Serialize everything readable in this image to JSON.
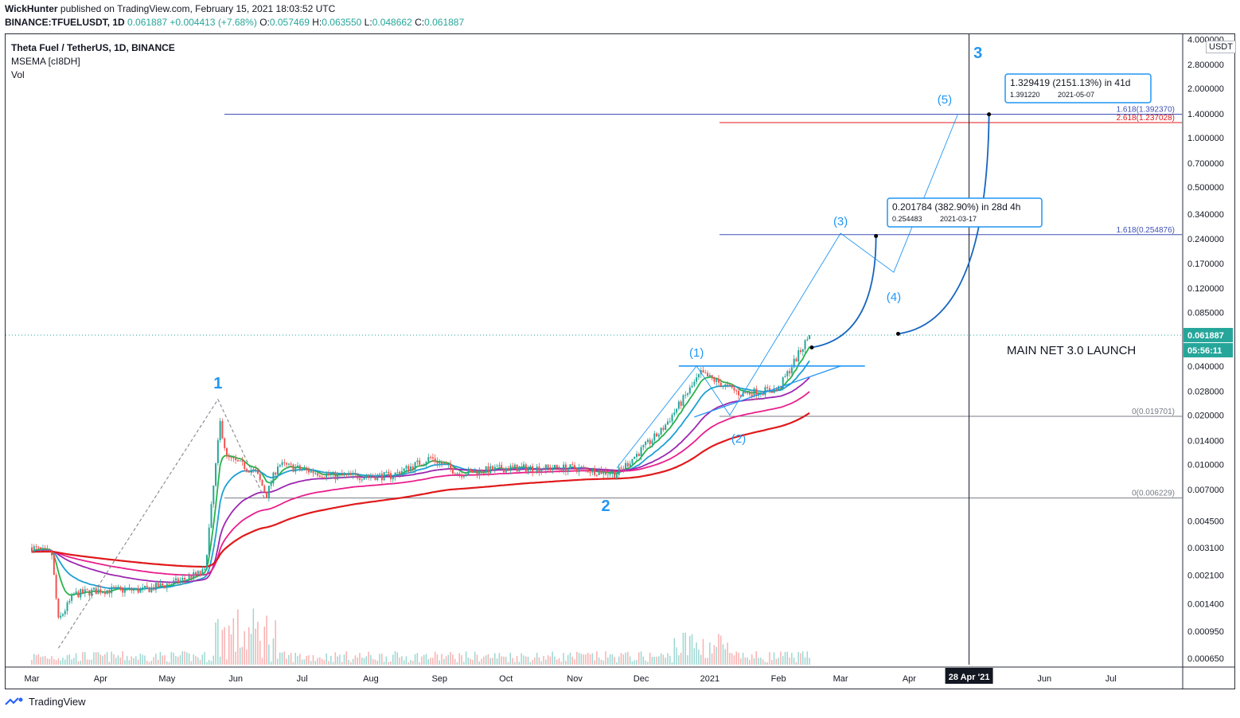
{
  "header": {
    "publisher": "WickHunter",
    "published_text": "published on TradingView.com, February 15, 2021 18:03:52 UTC",
    "symbol": "BINANCE:TFUELUSDT, 1D",
    "last": "0.061887",
    "change": "+0.004413 (+7.68%)",
    "o_label": "O:",
    "o": "0.057469",
    "h_label": "H:",
    "h": "0.063550",
    "l_label": "L:",
    "l": "0.048662",
    "c_label": "C:",
    "c": "0.061887"
  },
  "legend": {
    "title": "Theta Fuel / TetherUS, 1D, BINANCE",
    "indicator": "MSEMA [cI8DH]",
    "volume": "Vol"
  },
  "price_axis": {
    "currency": "USDT",
    "current_price": "0.061887",
    "countdown": "05:56:11"
  },
  "time_axis": {
    "highlight": "28 Apr '21"
  },
  "footer": {
    "brand": "TradingView"
  },
  "colors": {
    "up": "#26a69a",
    "down": "#ef5350",
    "ema_fast": "#1e9fd4",
    "ema_green": "#27b34a",
    "ema_purple": "#9c27b0",
    "ema_pink": "#e91e8c",
    "ema_red": "#e0191b",
    "annotation_blue": "#2196f3",
    "current_price_bg": "#26a69a"
  },
  "chart_data": {
    "type": "line",
    "scale": "log",
    "series": [],
    "price_axis_ticks": [
      "4.000000",
      "2.800000",
      "2.000000",
      "1.400000",
      "1.000000",
      "0.700000",
      "0.500000",
      "0.340000",
      "0.240000",
      "0.170000",
      "0.120000",
      "0.085000",
      "0.040000",
      "0.028000",
      "0.020000",
      "0.014000",
      "0.010000",
      "0.007000",
      "0.004500",
      "0.003100",
      "0.002100",
      "0.001400",
      "0.000950",
      "0.000650"
    ],
    "time_axis_ticks": [
      "Mar",
      "Apr",
      "May",
      "Jun",
      "Jul",
      "Aug",
      "Sep",
      "Oct",
      "Nov",
      "Dec",
      "2021",
      "Feb",
      "Mar",
      "Apr",
      "May",
      "Jun",
      "Jul"
    ],
    "fib_levels": [
      {
        "label": "1.618(1.392370)",
        "value": 1.39237,
        "color": "#3f51b5"
      },
      {
        "label": "2.618(1.237028)",
        "value": 1.237028,
        "color": "#e0191b"
      },
      {
        "label": "1.618(0.254876)",
        "value": 0.254876,
        "color": "#3f51b5"
      },
      {
        "label": "0(0.019701)",
        "value": 0.019701,
        "color": "#787b86"
      },
      {
        "label": "0(0.006229)",
        "value": 0.006229,
        "color": "#787b86"
      }
    ],
    "wave_labels": [
      "1",
      "2",
      "3",
      "(1)",
      "(2)",
      "(3)",
      "(4)",
      "(5)"
    ],
    "annotations": [
      {
        "text": "MAIN NET 3.0 LAUNCH"
      },
      {
        "line1": "1.329419 (2151.13%) in 41d",
        "line2_price": "1.391220",
        "line2_date": "2021-05-07"
      },
      {
        "line1": "0.201784 (382.90%) in 28d 4h",
        "line2_price": "0.254483",
        "line2_date": "2021-03-17"
      }
    ],
    "approx_close_path": [
      [
        "2020-03-01",
        0.0031
      ],
      [
        "2020-03-10",
        0.0028
      ],
      [
        "2020-03-13",
        0.0011
      ],
      [
        "2020-03-20",
        0.0016
      ],
      [
        "2020-04-01",
        0.0017
      ],
      [
        "2020-04-20",
        0.0017
      ],
      [
        "2020-05-05",
        0.0019
      ],
      [
        "2020-05-18",
        0.0022
      ],
      [
        "2020-05-25",
        0.018
      ],
      [
        "2020-05-28",
        0.011
      ],
      [
        "2020-06-10",
        0.009
      ],
      [
        "2020-06-15",
        0.0065
      ],
      [
        "2020-06-20",
        0.01
      ],
      [
        "2020-07-15",
        0.0085
      ],
      [
        "2020-08-10",
        0.0085
      ],
      [
        "2020-08-28",
        0.011
      ],
      [
        "2020-09-10",
        0.0088
      ],
      [
        "2020-10-01",
        0.0095
      ],
      [
        "2020-11-01",
        0.0095
      ],
      [
        "2020-11-20",
        0.0088
      ],
      [
        "2020-12-10",
        0.016
      ],
      [
        "2020-12-28",
        0.036
      ],
      [
        "2021-01-15",
        0.027
      ],
      [
        "2021-02-01",
        0.029
      ],
      [
        "2021-02-15",
        0.061887
      ]
    ]
  }
}
